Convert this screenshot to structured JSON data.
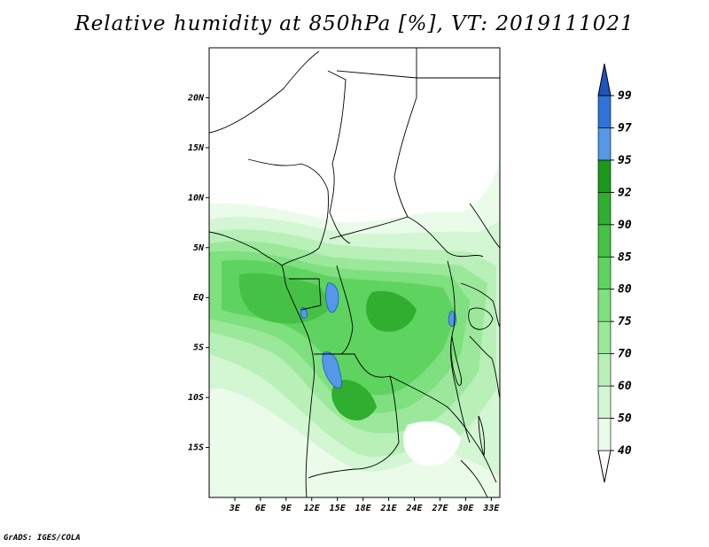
{
  "title": "Relative humidity at 850hPa [%], VT: 2019111021",
  "credit": "GrADS: IGES/COLA",
  "map": {
    "lon_range": [
      0,
      34
    ],
    "lat_range": [
      -20,
      25
    ],
    "lat_ticks": [
      {
        "value": 20,
        "label": "20N"
      },
      {
        "value": 15,
        "label": "15N"
      },
      {
        "value": 10,
        "label": "10N"
      },
      {
        "value": 5,
        "label": "5N"
      },
      {
        "value": 0,
        "label": "EQ"
      },
      {
        "value": -5,
        "label": "5S"
      },
      {
        "value": -10,
        "label": "10S"
      },
      {
        "value": -15,
        "label": "15S"
      }
    ],
    "lon_ticks": [
      {
        "value": 3,
        "label": "3E"
      },
      {
        "value": 6,
        "label": "6E"
      },
      {
        "value": 9,
        "label": "9E"
      },
      {
        "value": 12,
        "label": "12E"
      },
      {
        "value": 15,
        "label": "15E"
      },
      {
        "value": 18,
        "label": "18E"
      },
      {
        "value": 21,
        "label": "21E"
      },
      {
        "value": 24,
        "label": "24E"
      },
      {
        "value": 27,
        "label": "27E"
      },
      {
        "value": 30,
        "label": "30E"
      },
      {
        "value": 33,
        "label": "33E"
      }
    ]
  },
  "colorbar": {
    "levels": [
      "40",
      "50",
      "60",
      "70",
      "75",
      "80",
      "85",
      "90",
      "92",
      "95",
      "97",
      "99"
    ],
    "colors": [
      "#ffffff",
      "#eafbea",
      "#d3f6d3",
      "#b8f0b8",
      "#9be89b",
      "#7ee07e",
      "#5fd35f",
      "#45c245",
      "#2fae2f",
      "#1a9a1a",
      "#5598e8",
      "#2f74d8",
      "#1c55c0"
    ]
  }
}
